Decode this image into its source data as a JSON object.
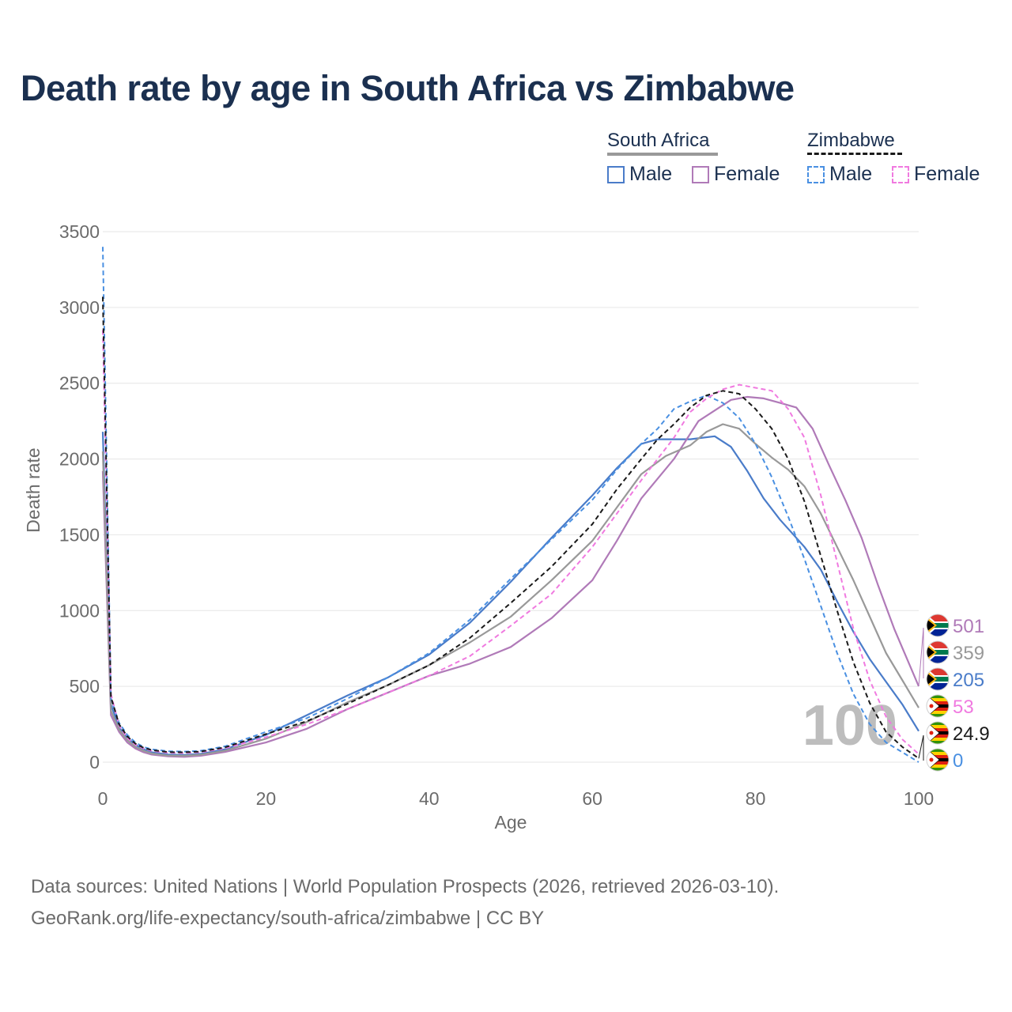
{
  "title": "Death rate by age in South Africa vs Zimbabwe",
  "legend": {
    "group1": "South Africa",
    "group2": "Zimbabwe",
    "male": "Male",
    "female": "Female"
  },
  "footer": {
    "line1": "Data sources: United Nations | World Population Prospects (2026, retrieved 2026-03-10).",
    "line2": "GeoRank.org/life-expectancy/south-africa/zimbabwe | CC BY"
  },
  "chart_data": {
    "type": "line",
    "xlabel": "Age",
    "ylabel": "Death rate",
    "xlim": [
      0,
      100
    ],
    "ylim": [
      0,
      3500
    ],
    "xticks": [
      0,
      20,
      40,
      60,
      80,
      100
    ],
    "yticks": [
      0,
      500,
      1000,
      1500,
      2000,
      2500,
      3000,
      3500
    ],
    "grid": true,
    "watermark": "100",
    "series": [
      {
        "name": "South Africa Male",
        "color": "#4a7cc9",
        "dash": "solid",
        "points": [
          [
            0,
            2180
          ],
          [
            1,
            380
          ],
          [
            2,
            230
          ],
          [
            3,
            160
          ],
          [
            4,
            115
          ],
          [
            5,
            85
          ],
          [
            6,
            65
          ],
          [
            8,
            50
          ],
          [
            10,
            48
          ],
          [
            12,
            55
          ],
          [
            15,
            85
          ],
          [
            20,
            180
          ],
          [
            25,
            310
          ],
          [
            30,
            440
          ],
          [
            35,
            560
          ],
          [
            40,
            710
          ],
          [
            45,
            920
          ],
          [
            50,
            1190
          ],
          [
            55,
            1480
          ],
          [
            60,
            1760
          ],
          [
            63,
            1940
          ],
          [
            66,
            2100
          ],
          [
            68,
            2130
          ],
          [
            72,
            2130
          ],
          [
            75,
            2150
          ],
          [
            77,
            2080
          ],
          [
            79,
            1920
          ],
          [
            81,
            1740
          ],
          [
            83,
            1600
          ],
          [
            86,
            1420
          ],
          [
            88,
            1270
          ],
          [
            90,
            1060
          ],
          [
            92,
            860
          ],
          [
            94,
            680
          ],
          [
            96,
            530
          ],
          [
            98,
            380
          ],
          [
            100,
            205
          ]
        ],
        "end_label": "205"
      },
      {
        "name": "South Africa Female",
        "color": "#b07ab8",
        "dash": "solid",
        "points": [
          [
            0,
            1920
          ],
          [
            1,
            310
          ],
          [
            2,
            200
          ],
          [
            3,
            130
          ],
          [
            4,
            90
          ],
          [
            5,
            65
          ],
          [
            6,
            50
          ],
          [
            8,
            38
          ],
          [
            10,
            35
          ],
          [
            12,
            42
          ],
          [
            15,
            68
          ],
          [
            20,
            130
          ],
          [
            25,
            220
          ],
          [
            30,
            350
          ],
          [
            35,
            460
          ],
          [
            40,
            570
          ],
          [
            45,
            650
          ],
          [
            50,
            760
          ],
          [
            55,
            950
          ],
          [
            60,
            1200
          ],
          [
            63,
            1460
          ],
          [
            66,
            1740
          ],
          [
            70,
            2000
          ],
          [
            73,
            2250
          ],
          [
            75,
            2320
          ],
          [
            77,
            2390
          ],
          [
            79,
            2410
          ],
          [
            81,
            2400
          ],
          [
            83,
            2370
          ],
          [
            85,
            2340
          ],
          [
            87,
            2200
          ],
          [
            89,
            1960
          ],
          [
            91,
            1730
          ],
          [
            93,
            1480
          ],
          [
            95,
            1170
          ],
          [
            97,
            880
          ],
          [
            100,
            501
          ]
        ],
        "end_label": "501"
      },
      {
        "name": "South Africa Both",
        "color": "#999999",
        "dash": "solid",
        "points": [
          [
            0,
            2050
          ],
          [
            1,
            340
          ],
          [
            2,
            215
          ],
          [
            3,
            145
          ],
          [
            4,
            100
          ],
          [
            5,
            75
          ],
          [
            6,
            57
          ],
          [
            8,
            44
          ],
          [
            10,
            42
          ],
          [
            12,
            49
          ],
          [
            15,
            76
          ],
          [
            20,
            155
          ],
          [
            25,
            265
          ],
          [
            30,
            395
          ],
          [
            35,
            510
          ],
          [
            40,
            640
          ],
          [
            45,
            790
          ],
          [
            50,
            960
          ],
          [
            55,
            1200
          ],
          [
            60,
            1460
          ],
          [
            63,
            1680
          ],
          [
            66,
            1900
          ],
          [
            69,
            2020
          ],
          [
            72,
            2090
          ],
          [
            74,
            2180
          ],
          [
            76,
            2230
          ],
          [
            78,
            2200
          ],
          [
            80,
            2100
          ],
          [
            82,
            2010
          ],
          [
            84,
            1930
          ],
          [
            86,
            1820
          ],
          [
            88,
            1640
          ],
          [
            90,
            1420
          ],
          [
            92,
            1200
          ],
          [
            94,
            960
          ],
          [
            96,
            720
          ],
          [
            98,
            540
          ],
          [
            100,
            359
          ]
        ],
        "end_label": "359"
      },
      {
        "name": "Zimbabwe Male",
        "color": "#4a90e2",
        "dash": "dashed",
        "points": [
          [
            0,
            3400
          ],
          [
            1,
            420
          ],
          [
            2,
            260
          ],
          [
            3,
            180
          ],
          [
            4,
            130
          ],
          [
            5,
            100
          ],
          [
            6,
            85
          ],
          [
            8,
            72
          ],
          [
            10,
            70
          ],
          [
            12,
            75
          ],
          [
            15,
            105
          ],
          [
            20,
            200
          ],
          [
            25,
            290
          ],
          [
            30,
            420
          ],
          [
            35,
            560
          ],
          [
            40,
            720
          ],
          [
            45,
            940
          ],
          [
            50,
            1210
          ],
          [
            55,
            1470
          ],
          [
            60,
            1730
          ],
          [
            63,
            1930
          ],
          [
            66,
            2100
          ],
          [
            68,
            2200
          ],
          [
            70,
            2330
          ],
          [
            72,
            2380
          ],
          [
            74,
            2420
          ],
          [
            76,
            2370
          ],
          [
            78,
            2270
          ],
          [
            80,
            2100
          ],
          [
            82,
            1880
          ],
          [
            84,
            1620
          ],
          [
            86,
            1340
          ],
          [
            88,
            1030
          ],
          [
            90,
            720
          ],
          [
            92,
            450
          ],
          [
            94,
            250
          ],
          [
            96,
            130
          ],
          [
            98,
            65
          ],
          [
            100,
            0
          ]
        ],
        "end_label": "0"
      },
      {
        "name": "Zimbabwe Female",
        "color": "#f07ae0",
        "dash": "dashed",
        "points": [
          [
            0,
            2850
          ],
          [
            1,
            450
          ],
          [
            2,
            240
          ],
          [
            3,
            160
          ],
          [
            4,
            115
          ],
          [
            5,
            90
          ],
          [
            6,
            75
          ],
          [
            8,
            62
          ],
          [
            10,
            60
          ],
          [
            12,
            66
          ],
          [
            15,
            92
          ],
          [
            20,
            165
          ],
          [
            25,
            250
          ],
          [
            30,
            350
          ],
          [
            35,
            460
          ],
          [
            40,
            570
          ],
          [
            45,
            700
          ],
          [
            50,
            900
          ],
          [
            55,
            1110
          ],
          [
            60,
            1420
          ],
          [
            63,
            1640
          ],
          [
            66,
            1860
          ],
          [
            70,
            2140
          ],
          [
            72,
            2310
          ],
          [
            74,
            2400
          ],
          [
            76,
            2460
          ],
          [
            78,
            2490
          ],
          [
            80,
            2470
          ],
          [
            82,
            2450
          ],
          [
            84,
            2330
          ],
          [
            86,
            2140
          ],
          [
            88,
            1760
          ],
          [
            90,
            1320
          ],
          [
            92,
            880
          ],
          [
            94,
            540
          ],
          [
            96,
            300
          ],
          [
            98,
            150
          ],
          [
            100,
            53
          ]
        ],
        "end_label": "53"
      },
      {
        "name": "Zimbabwe Both",
        "color": "#1a1a1a",
        "dash": "dashed",
        "points": [
          [
            0,
            3070
          ],
          [
            1,
            430
          ],
          [
            2,
            250
          ],
          [
            3,
            170
          ],
          [
            4,
            122
          ],
          [
            5,
            95
          ],
          [
            6,
            80
          ],
          [
            8,
            67
          ],
          [
            10,
            65
          ],
          [
            12,
            70
          ],
          [
            15,
            98
          ],
          [
            20,
            185
          ],
          [
            25,
            270
          ],
          [
            30,
            385
          ],
          [
            35,
            510
          ],
          [
            40,
            640
          ],
          [
            45,
            820
          ],
          [
            50,
            1050
          ],
          [
            55,
            1290
          ],
          [
            60,
            1570
          ],
          [
            63,
            1800
          ],
          [
            66,
            2000
          ],
          [
            68,
            2130
          ],
          [
            70,
            2230
          ],
          [
            72,
            2340
          ],
          [
            74,
            2420
          ],
          [
            76,
            2450
          ],
          [
            78,
            2430
          ],
          [
            80,
            2330
          ],
          [
            82,
            2200
          ],
          [
            84,
            2000
          ],
          [
            86,
            1720
          ],
          [
            88,
            1360
          ],
          [
            90,
            1000
          ],
          [
            92,
            660
          ],
          [
            94,
            390
          ],
          [
            96,
            200
          ],
          [
            98,
            100
          ],
          [
            100,
            24.9
          ]
        ],
        "end_label": "24.9"
      }
    ]
  }
}
